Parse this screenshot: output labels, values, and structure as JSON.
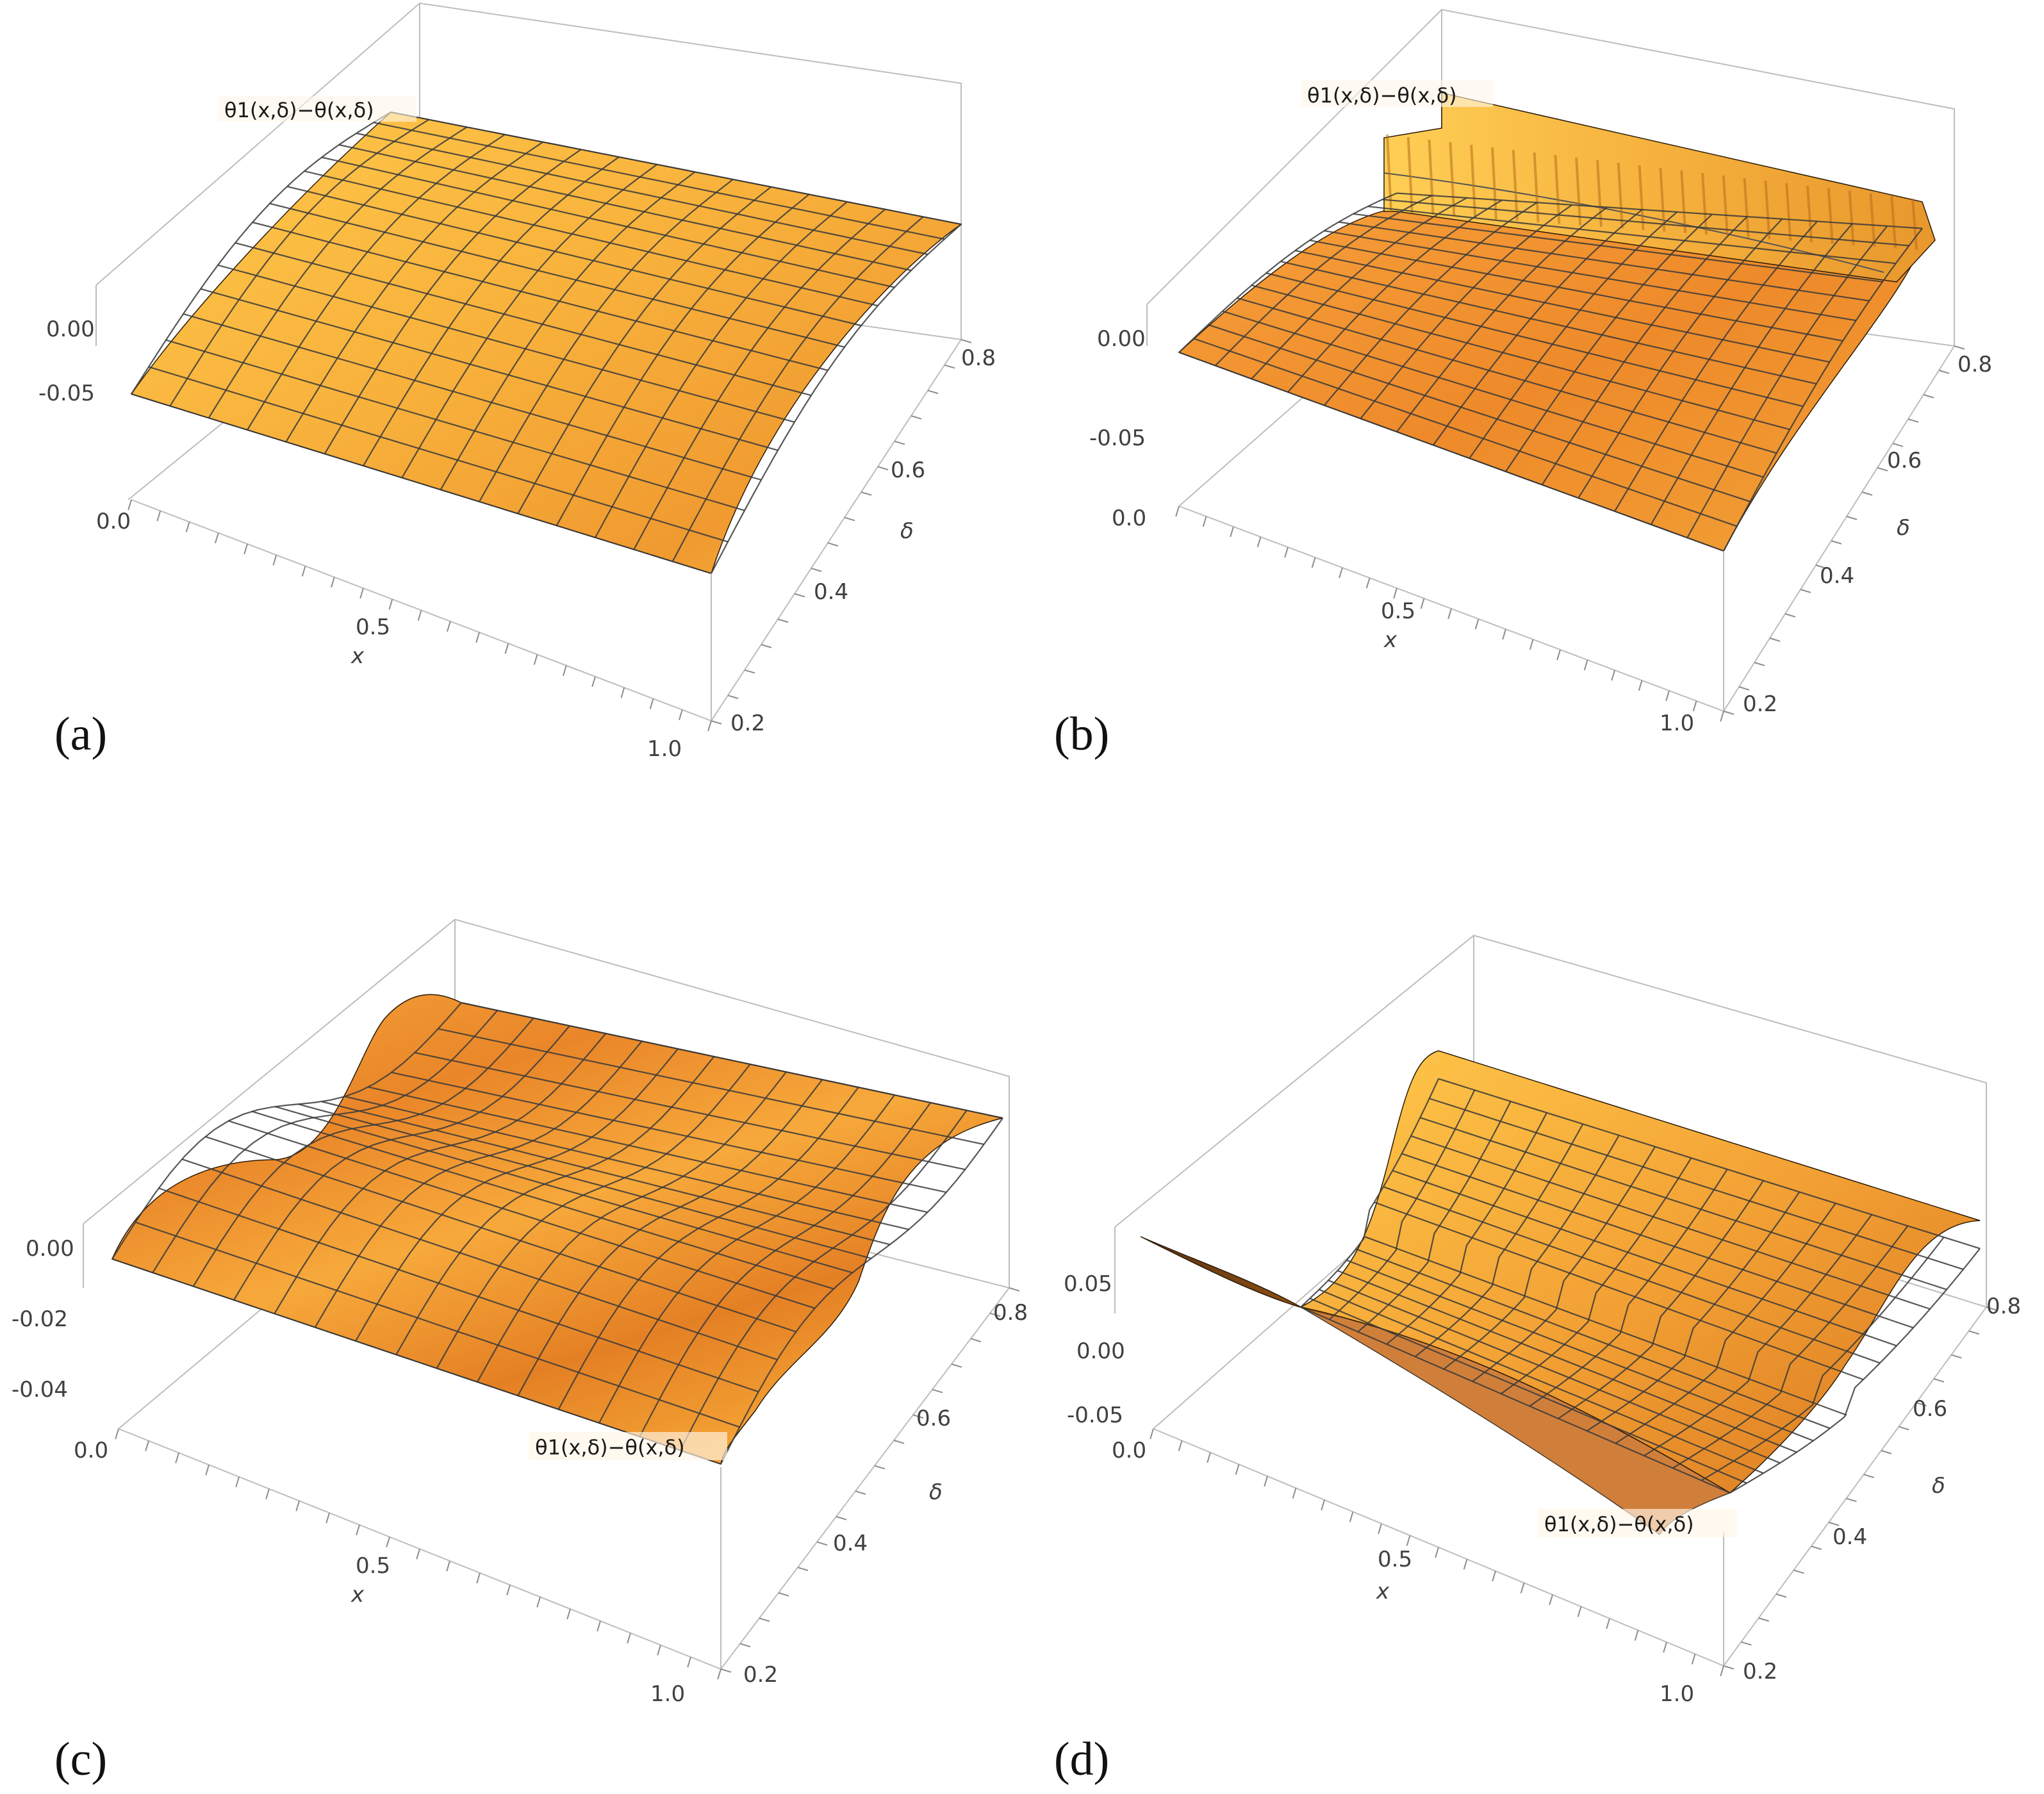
{
  "chart_data": [
    {
      "panel": "(a)",
      "type": "surface3d",
      "zlabel": "θ1(x,δ)−θ(x,δ)",
      "zlabel_pos": "top",
      "xlabel": "x",
      "ylabel": "δ",
      "xlim": [
        0,
        1
      ],
      "ylim": [
        0.2,
        0.8
      ],
      "zlim": [
        -0.1,
        0.02
      ],
      "x_ticks": [
        "0.0",
        "0.5",
        "1.0"
      ],
      "y_ticks": [
        "0.2",
        "0.4",
        "0.6",
        "0.8"
      ],
      "z_ticks": [
        "0.00",
        "-0.05"
      ],
      "surface": {
        "shape": "arch",
        "front_z": -0.045,
        "back_z": 0.012,
        "dz_per_delta": 0.02
      },
      "mesh_lines": 15
    },
    {
      "panel": "(b)",
      "type": "surface3d",
      "zlabel": "θ1(x,δ)−θ(x,δ)",
      "zlabel_pos": "top",
      "xlabel": "x",
      "ylabel": "δ",
      "xlim": [
        0,
        1
      ],
      "ylim": [
        0.2,
        0.8
      ],
      "zlim": [
        -0.1,
        0.02
      ],
      "x_ticks": [
        "0.5",
        "1.0"
      ],
      "y_ticks": [
        "0.2",
        "0.4",
        "0.6",
        "0.8"
      ],
      "z_ticks": [
        "0.00",
        "-0.05",
        "0.0"
      ],
      "surface": {
        "shape": "arch-with-ridge",
        "front_z": -0.01,
        "back_z": -0.045,
        "ridge_z": 0.02
      },
      "mesh_lines": 15
    },
    {
      "panel": "(c)",
      "type": "surface3d",
      "zlabel": "θ1(x,δ)−θ(x,δ)",
      "zlabel_pos": "front",
      "xlabel": "x",
      "ylabel": "δ",
      "xlim": [
        0,
        1
      ],
      "ylim": [
        0.2,
        0.8
      ],
      "zlim": [
        -0.06,
        0.005
      ],
      "x_ticks": [
        "0.0",
        "0.5",
        "1.0"
      ],
      "y_ticks": [
        "0.2",
        "0.4",
        "0.6",
        "0.8"
      ],
      "z_ticks": [
        "0.00",
        "-0.02",
        "-0.04"
      ],
      "surface": {
        "shape": "wave",
        "front_z": -0.006,
        "back_z": -0.05
      },
      "mesh_lines": 15
    },
    {
      "panel": "(d)",
      "type": "surface3d",
      "zlabel": "θ1(x,δ)−θ(x,δ)",
      "zlabel_pos": "front",
      "xlabel": "x",
      "ylabel": "δ",
      "xlim": [
        0,
        1
      ],
      "ylim": [
        0.2,
        0.8
      ],
      "zlim": [
        -0.07,
        0.07
      ],
      "x_ticks": [
        "0.0",
        "0.5",
        "1.0"
      ],
      "y_ticks": [
        "0.2",
        "0.4",
        "0.6",
        "0.8"
      ],
      "z_ticks": [
        "0.05",
        "0.00",
        "-0.05"
      ],
      "surface": {
        "shape": "valley",
        "front_z": 0.05,
        "back_z": 0.08
      },
      "mesh_lines": 15
    }
  ],
  "colors": {
    "surface_light": "#ffc84a",
    "surface_mid": "#f5a53a",
    "surface_dark": "#e07a1e",
    "surface_shadow": "#b85e14",
    "box": "#bdbdbd",
    "mesh": "#3a3a3a"
  }
}
